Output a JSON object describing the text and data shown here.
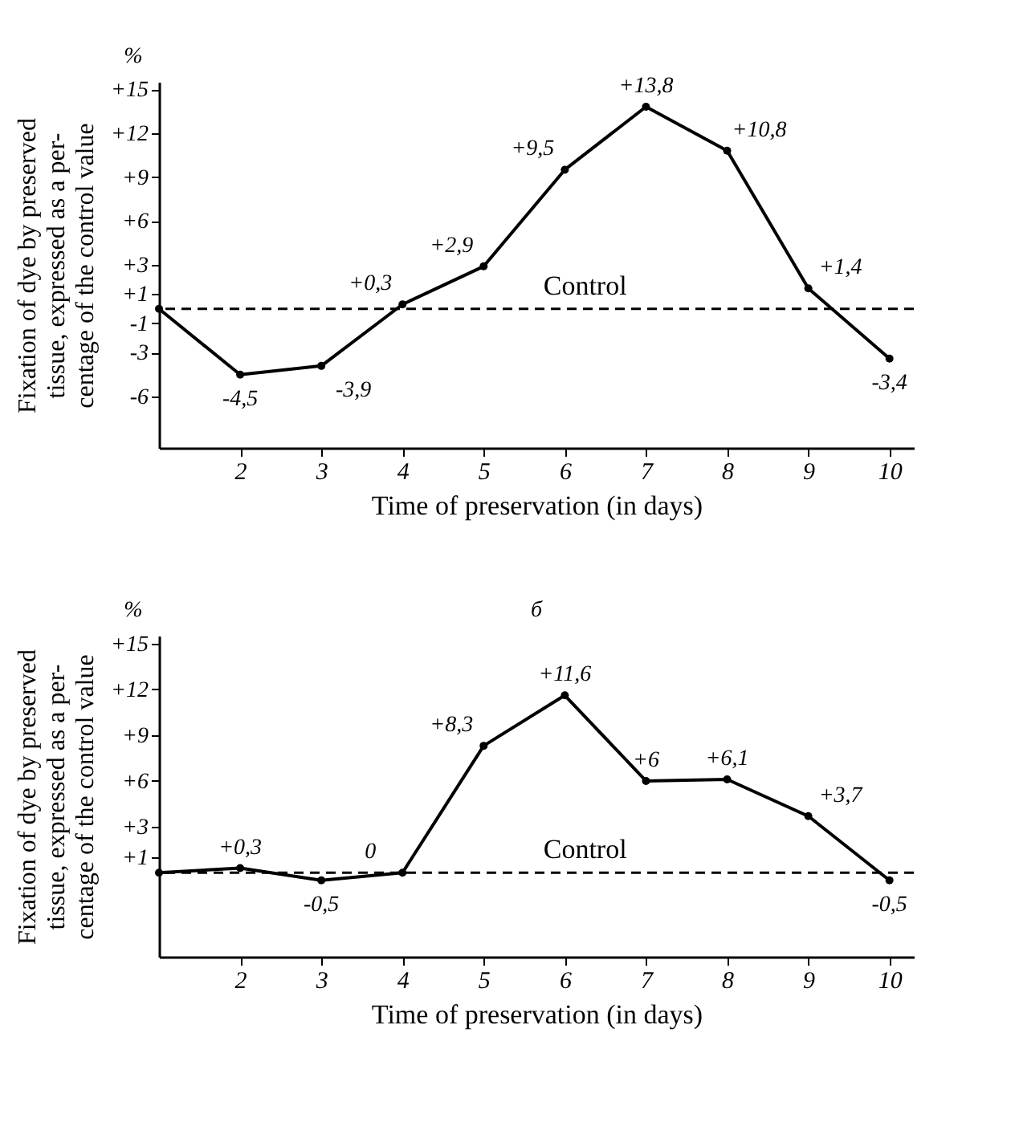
{
  "chart_data": [
    {
      "type": "line",
      "xlabel": "Time of preservation (in days)",
      "ylabel": "Fixation of dye by preserved\ntissue, expressed as a per-\ncentage of the control value",
      "x": [
        1,
        2,
        3,
        4,
        5,
        6,
        7,
        8,
        9,
        10
      ],
      "series": [
        {
          "color": "#000000",
          "values": [
            0,
            -4.5,
            -3.9,
            0.3,
            2.9,
            9.5,
            13.8,
            10.8,
            1.4,
            -3.4
          ],
          "value_labels": [
            null,
            "-4,5",
            "-3,9",
            "+0,3",
            "+2,9",
            "+9,5",
            "+13,8",
            "+10,8",
            "+1,4",
            "-3,4"
          ]
        }
      ],
      "xlim": [
        1,
        10.3
      ],
      "xticks": [
        2,
        3,
        4,
        5,
        6,
        7,
        8,
        9,
        10
      ],
      "ylim": [
        -9.5,
        15.5
      ],
      "yticks": [
        {
          "value": 15,
          "label": "+15"
        },
        {
          "value": 12,
          "label": "+12"
        },
        {
          "value": 9,
          "label": "+9"
        },
        {
          "value": 6,
          "label": "+6"
        },
        {
          "value": 3,
          "label": "+3"
        },
        {
          "value": 1,
          "label": "+1"
        },
        -1,
        -3,
        -6
      ],
      "ref_lines": [
        {
          "axis": "y",
          "value": 0,
          "label": "Control",
          "line_style": "dashed"
        }
      ],
      "annotations": [
        "%"
      ],
      "marker": "circle",
      "line_style": "solid"
    },
    {
      "type": "line",
      "xlabel": "Time of preservation (in days)",
      "ylabel": "Fixation of dye by preserved\ntissue, expressed as a per-\ncentage of the control value",
      "x": [
        1,
        2,
        3,
        4,
        5,
        6,
        7,
        8,
        9,
        10
      ],
      "series": [
        {
          "color": "#000000",
          "values": [
            0,
            0.3,
            -0.5,
            0,
            8.3,
            11.6,
            6,
            6.1,
            3.7,
            -0.5
          ],
          "value_labels": [
            null,
            "+0,3",
            "-0,5",
            "0",
            "+8,3",
            "+11,6",
            "+6",
            "+6,1",
            "+3,7",
            "-0,5"
          ]
        }
      ],
      "xlim": [
        1,
        10.3
      ],
      "xticks": [
        2,
        3,
        4,
        5,
        6,
        7,
        8,
        9,
        10
      ],
      "ylim": [
        -5.5,
        15.5
      ],
      "yticks": [
        {
          "value": 15,
          "label": "+15"
        },
        {
          "value": 12,
          "label": "+12"
        },
        {
          "value": 9,
          "label": "+9"
        },
        {
          "value": 6,
          "label": "+6"
        },
        {
          "value": 3,
          "label": "+3"
        },
        {
          "value": 1,
          "label": "+1"
        }
      ],
      "ref_lines": [
        {
          "axis": "y",
          "value": 0,
          "label": "Control",
          "line_style": "dashed"
        }
      ],
      "annotations": [
        "%",
        "б"
      ],
      "marker": "circle",
      "line_style": "solid"
    }
  ]
}
